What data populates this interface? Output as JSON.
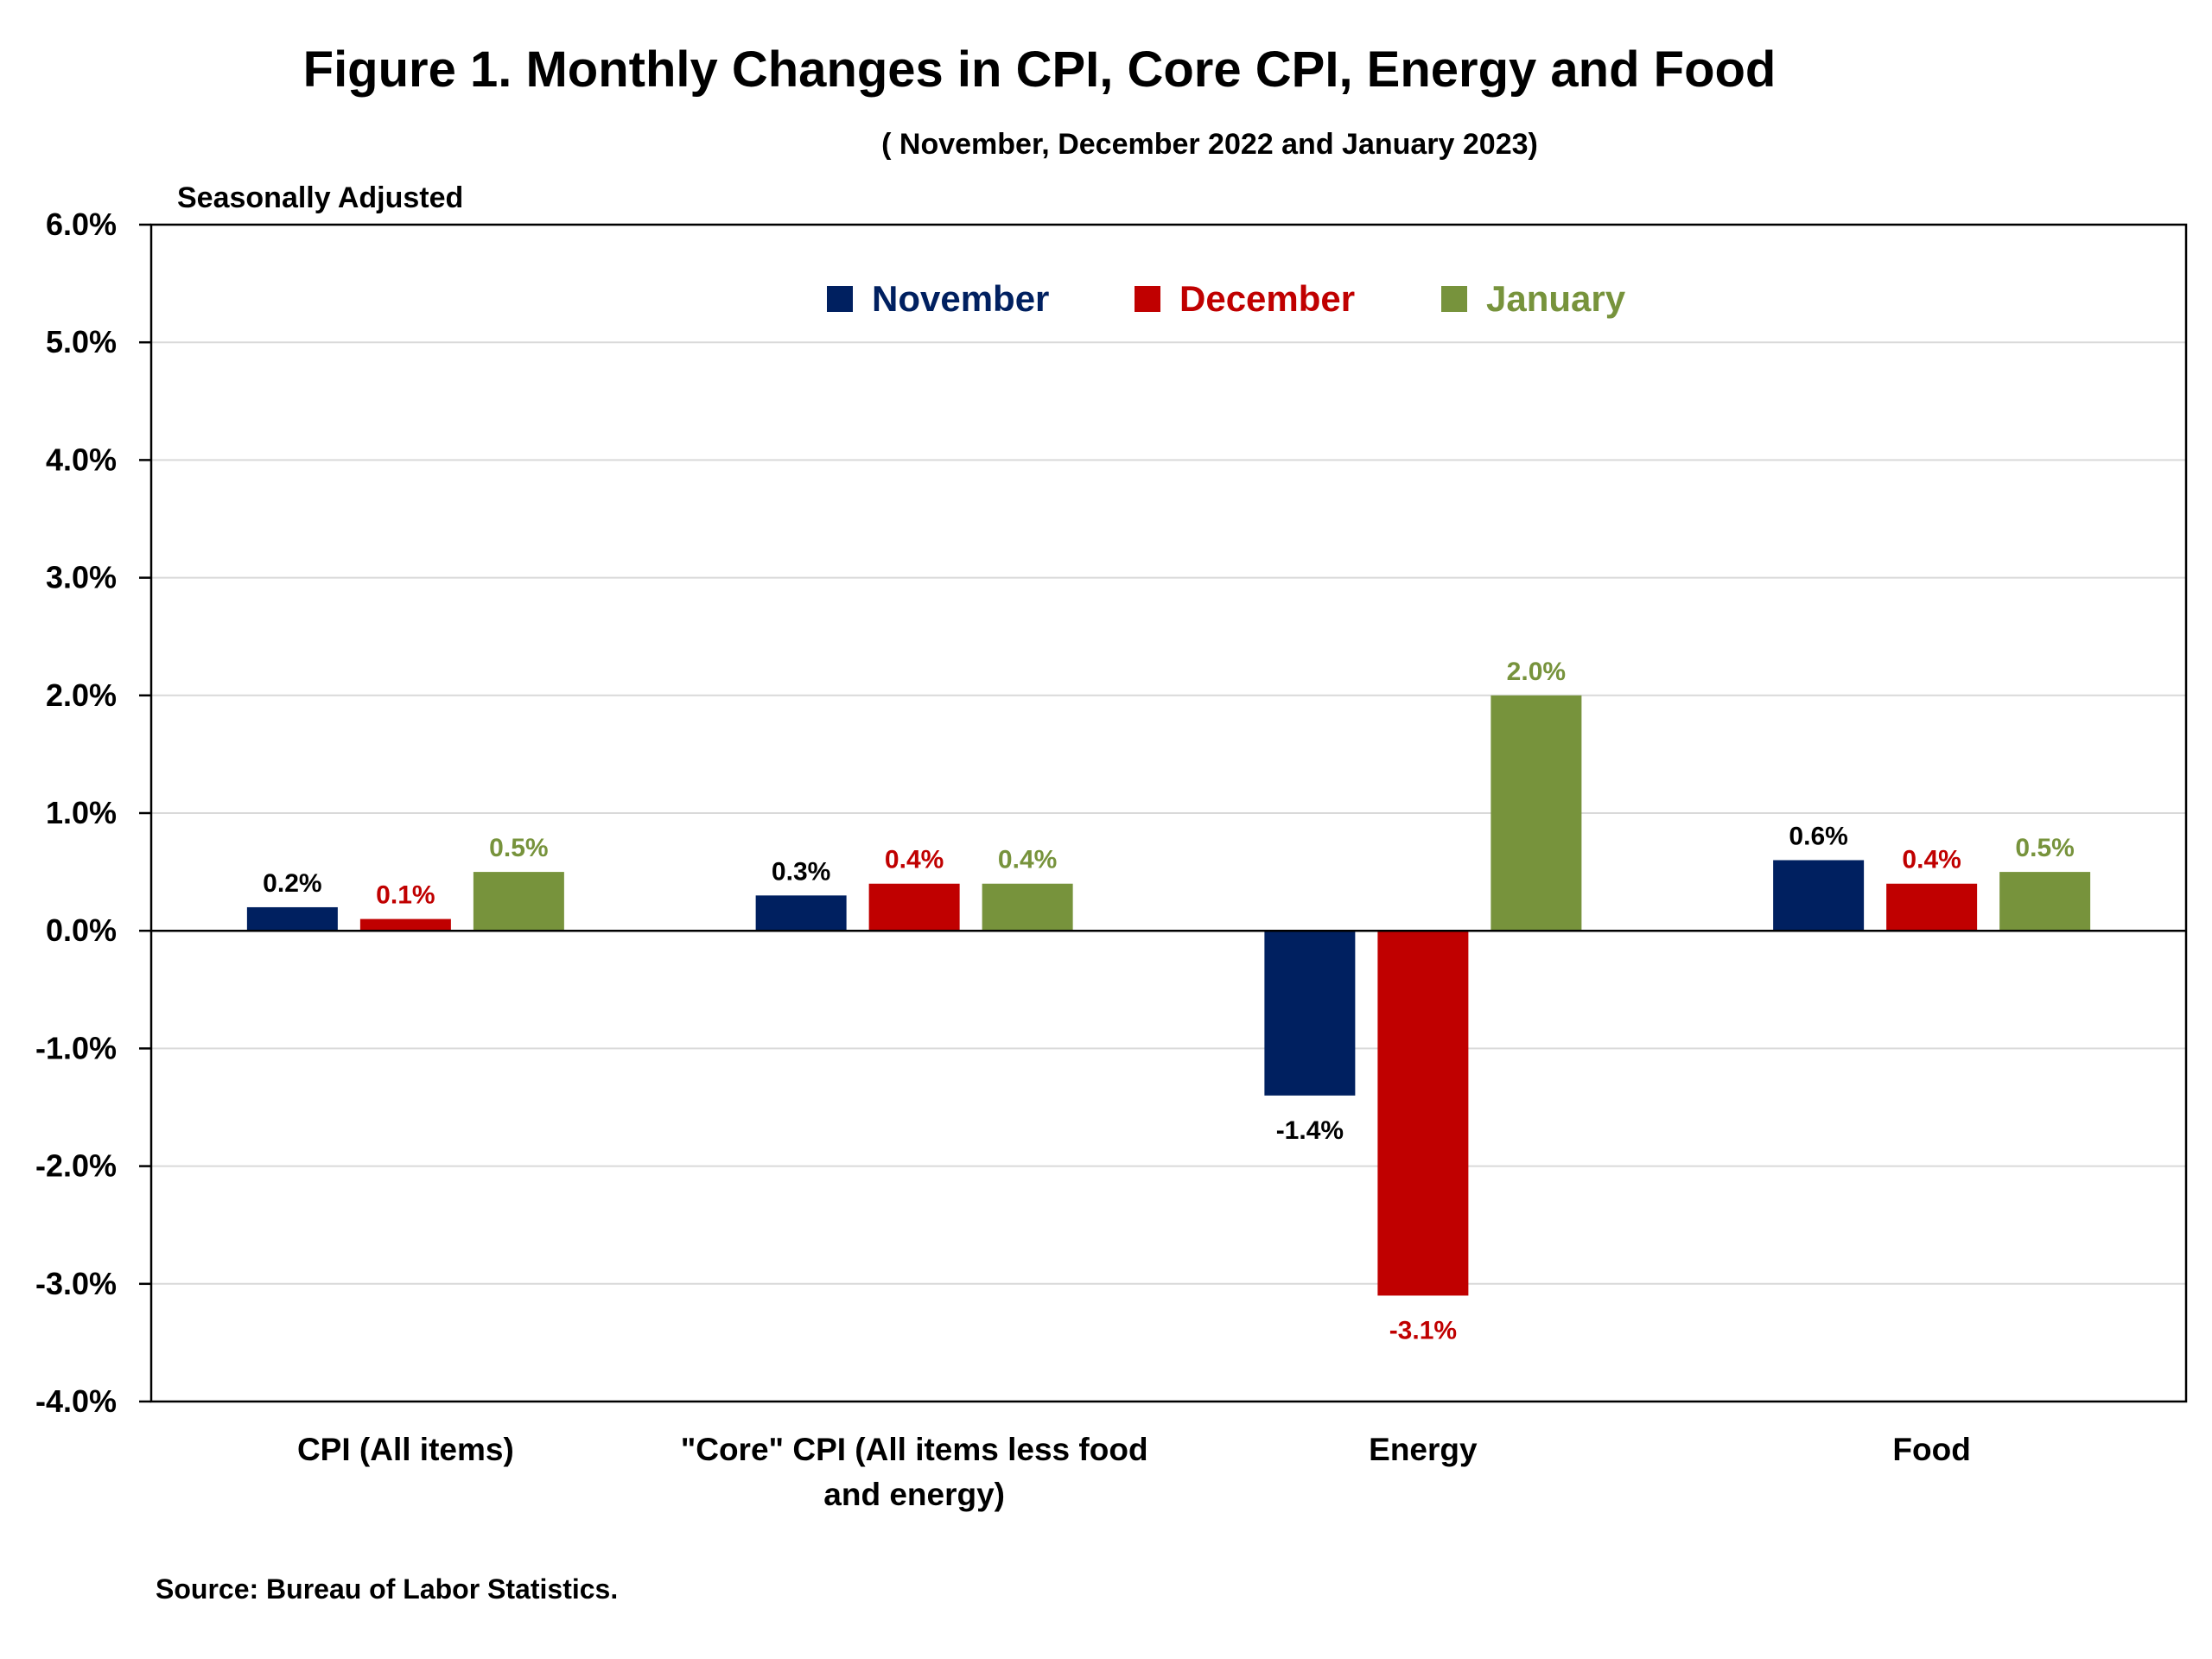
{
  "title": "Figure 1. Monthly Changes in CPI, Core CPI, Energy and Food",
  "subtitle": "( November, December 2022 and January 2023)",
  "note": "Seasonally Adjusted",
  "source": "Source: Bureau of Labor Statistics.",
  "chart_data": {
    "type": "bar",
    "categories": [
      [
        "CPI (All items)"
      ],
      [
        "\"Core\" CPI (All items less food",
        "and energy)"
      ],
      [
        "Energy"
      ],
      [
        "Food"
      ]
    ],
    "series": [
      {
        "name": "November",
        "color": "#002060",
        "values": [
          0.2,
          0.3,
          -1.4,
          0.6
        ],
        "labels": [
          "0.2%",
          "0.3%",
          "-1.4%",
          "0.6%"
        ],
        "label_color": "#000000"
      },
      {
        "name": "December",
        "color": "#C00000",
        "values": [
          0.1,
          0.4,
          -3.1,
          0.4
        ],
        "labels": [
          "0.1%",
          "0.4%",
          "-3.1%",
          "0.4%"
        ],
        "label_color": "#C00000"
      },
      {
        "name": "January",
        "color": "#77933C",
        "values": [
          0.5,
          0.4,
          2.0,
          0.5
        ],
        "labels": [
          "0.5%",
          "0.4%",
          "2.0%",
          "0.5%"
        ],
        "label_color": "#77933C"
      }
    ],
    "ylim": [
      -4.0,
      6.0
    ],
    "yticks": [
      6.0,
      5.0,
      4.0,
      3.0,
      2.0,
      1.0,
      0.0,
      -1.0,
      -2.0,
      -3.0,
      -4.0
    ],
    "ytick_labels": [
      "6.0%",
      "5.0%",
      "4.0%",
      "3.0%",
      "2.0%",
      "1.0%",
      "0.0%",
      "-1.0%",
      "-2.0%",
      "-3.0%",
      "-4.0%"
    ],
    "grid": true,
    "legend_position": "top-center"
  }
}
